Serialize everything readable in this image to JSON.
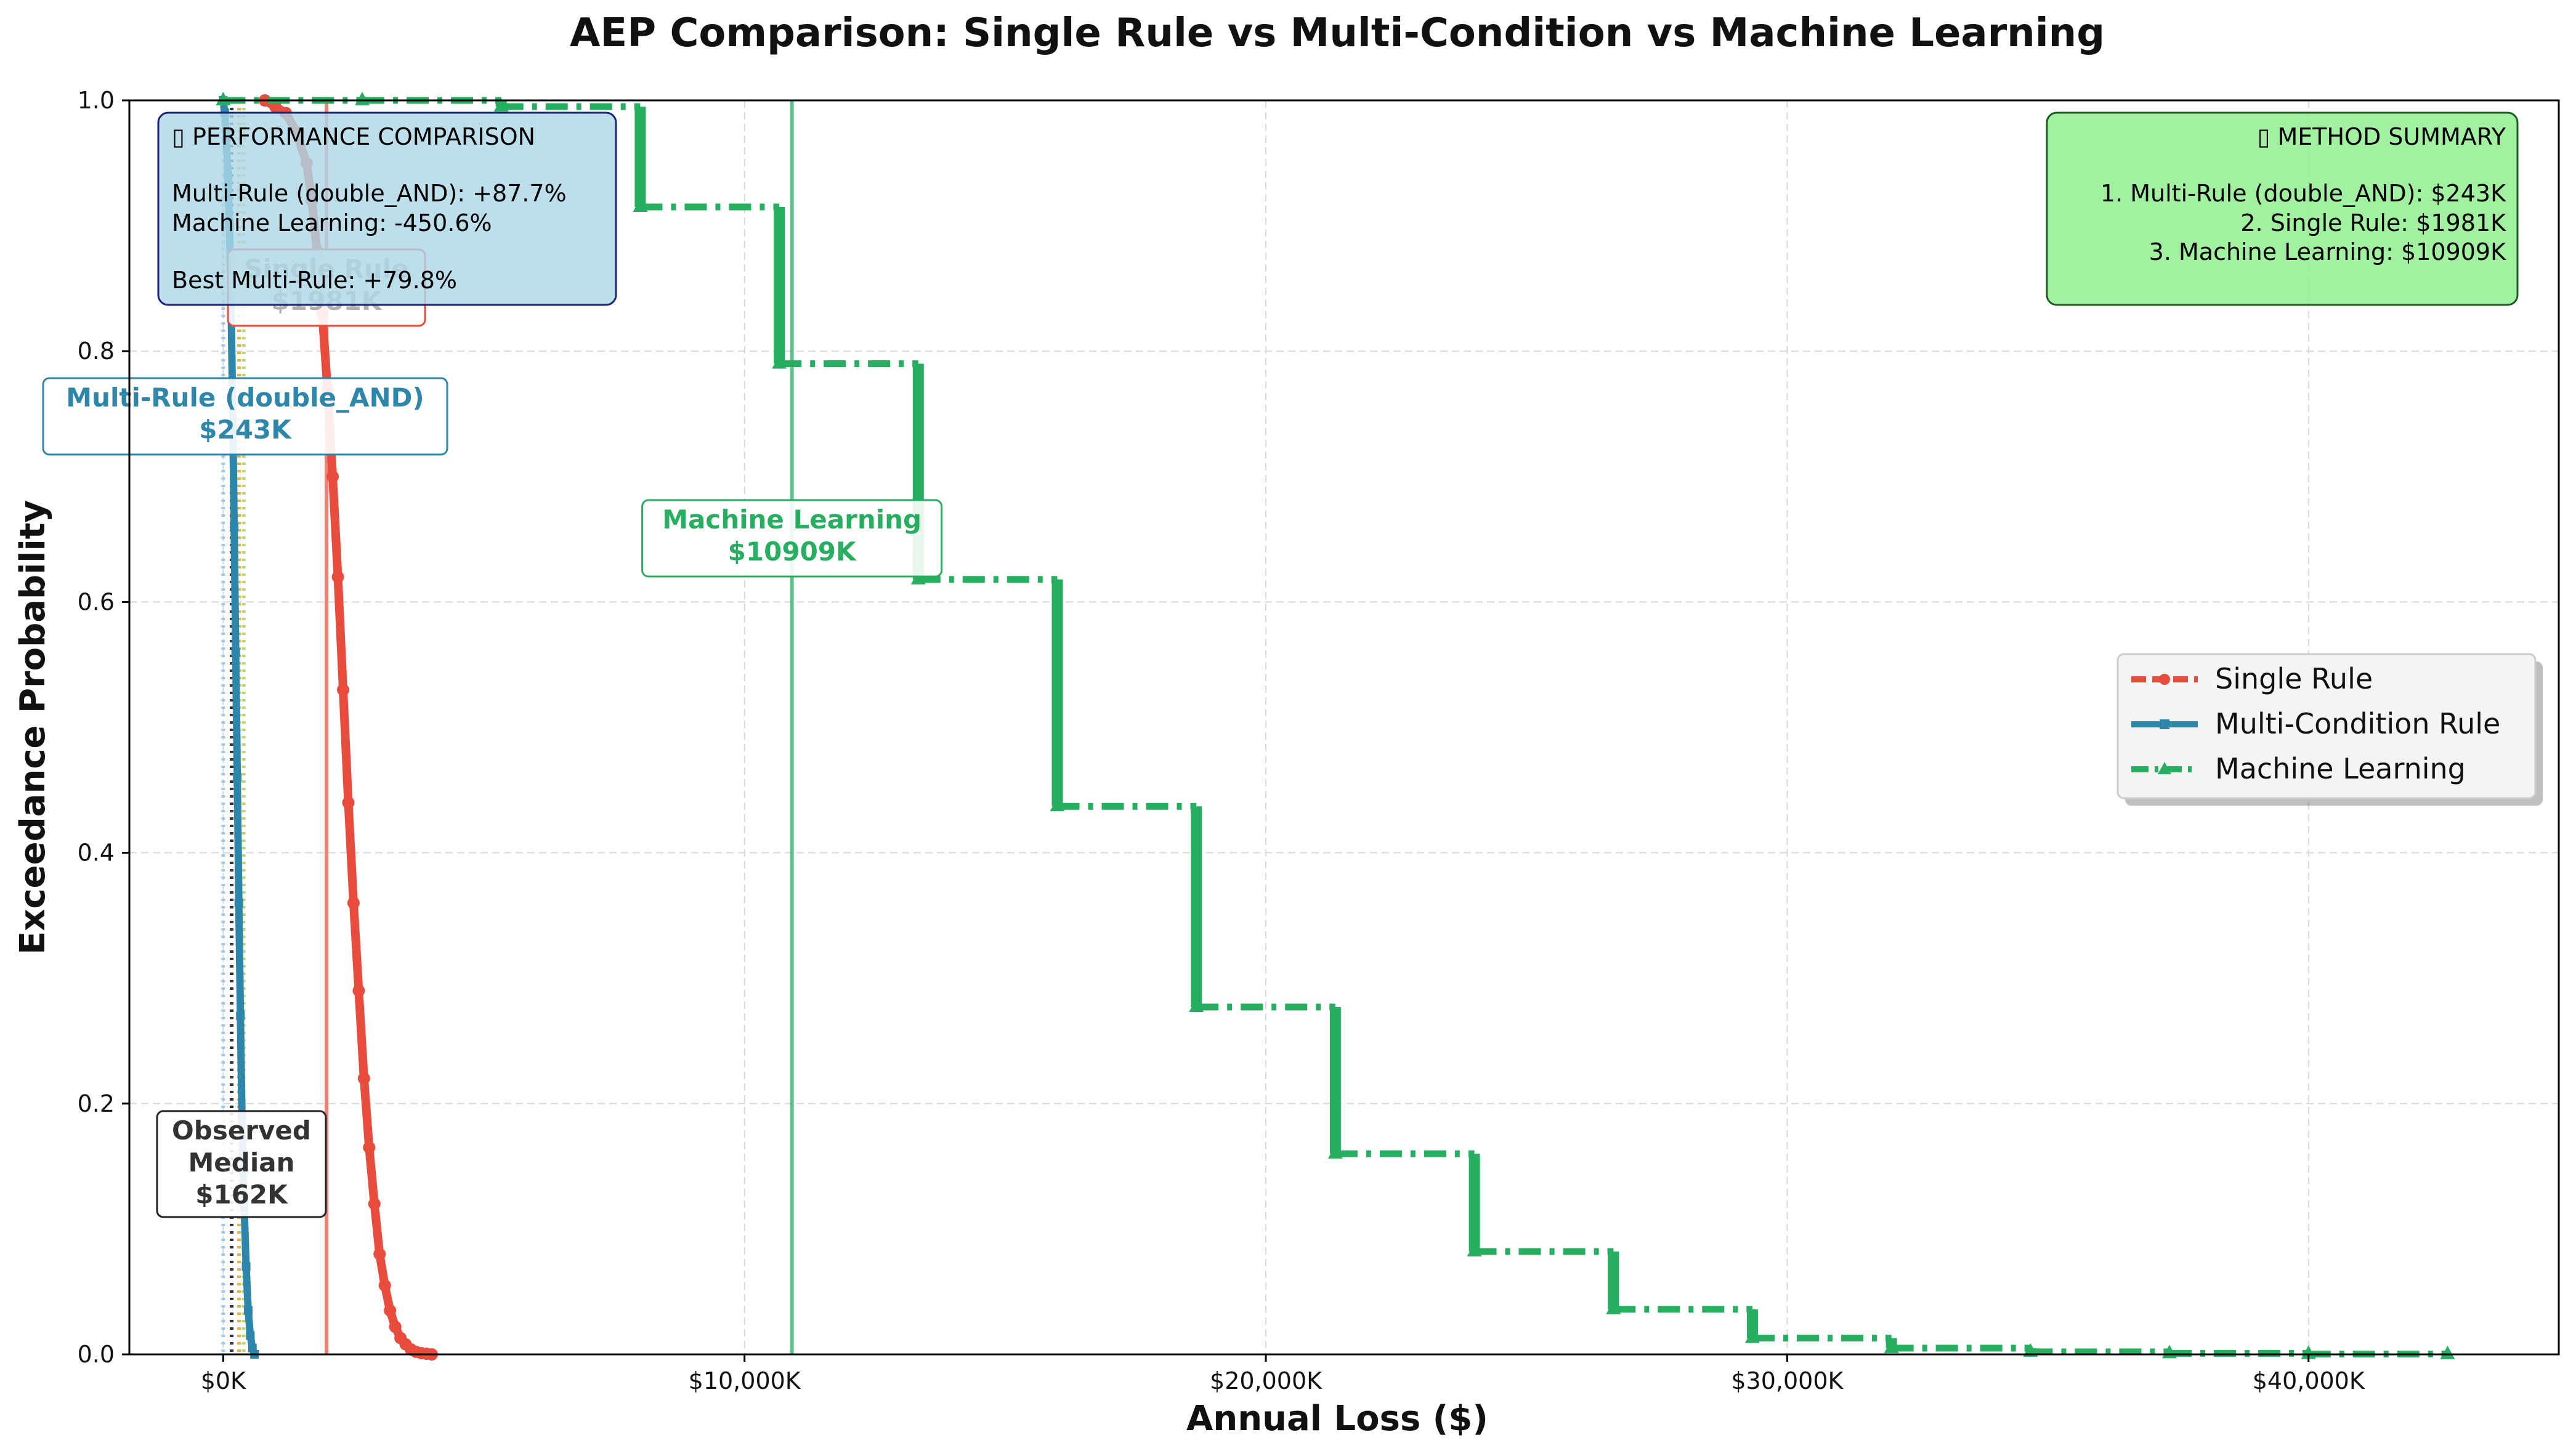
{
  "chart_data": {
    "type": "line",
    "title": "AEP Comparison: Single Rule vs Multi-Condition vs Machine Learning",
    "xlabel": "Annual Loss ($)",
    "ylabel": "Exceedance Probability",
    "xlim": [
      -1800,
      44800
    ],
    "ylim": [
      0,
      1.0
    ],
    "x_ticks": [
      {
        "value": 0,
        "label": "$0K"
      },
      {
        "value": 10000,
        "label": "$10,000K"
      },
      {
        "value": 20000,
        "label": "$20,000K"
      },
      {
        "value": 30000,
        "label": "$30,000K"
      },
      {
        "value": 40000,
        "label": "$40,000K"
      }
    ],
    "y_ticks": [
      {
        "value": 0.0,
        "label": "0.0"
      },
      {
        "value": 0.2,
        "label": "0.2"
      },
      {
        "value": 0.4,
        "label": "0.4"
      },
      {
        "value": 0.6,
        "label": "0.6"
      },
      {
        "value": 0.8,
        "label": "0.8"
      },
      {
        "value": 1.0,
        "label": "1.0"
      }
    ],
    "grid": true,
    "legend_position": "center-right",
    "series": [
      {
        "name": "Single Rule",
        "color": "#e74c3c",
        "marker": "circle",
        "mean_line_x": 1981,
        "x": [
          800,
          1000,
          1200,
          1400,
          1600,
          1700,
          1800,
          1900,
          2000,
          2100,
          2200,
          2300,
          2400,
          2500,
          2600,
          2700,
          2800,
          2900,
          3000,
          3100,
          3200,
          3300,
          3400,
          3500,
          3600,
          3700,
          3800,
          3900,
          4000
        ],
        "y": [
          1.0,
          0.995,
          0.99,
          0.975,
          0.95,
          0.92,
          0.88,
          0.83,
          0.77,
          0.7,
          0.62,
          0.53,
          0.44,
          0.36,
          0.29,
          0.22,
          0.165,
          0.12,
          0.08,
          0.055,
          0.035,
          0.022,
          0.013,
          0.008,
          0.004,
          0.002,
          0.001,
          0.0005,
          0.0
        ]
      },
      {
        "name": "Multi-Condition Rule",
        "color": "#2e86ab",
        "marker": "square",
        "mean_line_x": 243,
        "x": [
          0,
          30,
          60,
          90,
          120,
          150,
          180,
          210,
          240,
          270,
          300,
          330,
          360,
          400,
          440,
          480,
          520,
          560,
          600
        ],
        "y": [
          1.0,
          0.99,
          0.97,
          0.94,
          0.9,
          0.84,
          0.76,
          0.66,
          0.56,
          0.46,
          0.36,
          0.27,
          0.19,
          0.12,
          0.07,
          0.035,
          0.015,
          0.005,
          0.0
        ]
      },
      {
        "name": "Machine Learning",
        "color": "#27ae60",
        "marker": "triangle",
        "mean_line_x": 10909,
        "x": [
          0,
          2667,
          5333,
          8000,
          10667,
          13333,
          16000,
          18667,
          21333,
          24000,
          26667,
          29333,
          32000,
          34667,
          37333,
          40000,
          42667
        ],
        "y": [
          1.0,
          1.0,
          0.995,
          0.915,
          0.79,
          0.618,
          0.437,
          0.277,
          0.16,
          0.082,
          0.036,
          0.013,
          0.005,
          0.002,
          0.0008,
          0.0003,
          0.0001
        ]
      }
    ],
    "observed_median_x": 162,
    "annotations": {
      "single_rule": {
        "title": "Single Rule",
        "value": "$1981K"
      },
      "multi_rule": {
        "title": "Multi-Rule (double_AND)",
        "value": "$243K"
      },
      "machine_learning": {
        "title": "Machine Learning",
        "value": "$10909K"
      },
      "observed": {
        "line1": "Observed",
        "line2": "Median",
        "value": "$162K"
      }
    },
    "performance_box": {
      "header": "PERFORMANCE COMPARISON",
      "line1": "Multi-Rule (double_AND): +87.7%",
      "line2": "Machine Learning: -450.6%",
      "line3": "Best Multi-Rule: +79.8%"
    },
    "summary_box": {
      "header": "METHOD SUMMARY",
      "line1": "1. Multi-Rule (double_AND): $243K",
      "line2": "2. Single Rule: $1981K",
      "line3": "3. Machine Learning: $10909K"
    }
  }
}
